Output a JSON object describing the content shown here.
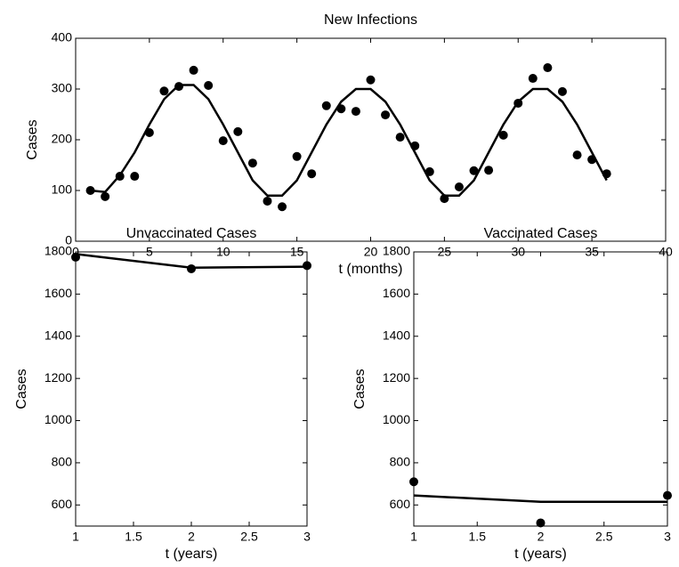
{
  "chart_data": [
    {
      "type": "line",
      "title": "New Infections",
      "xlabel": "t (months)",
      "ylabel": "Cases",
      "xlim": [
        0,
        40
      ],
      "ylim": [
        0,
        400
      ],
      "xticks": [
        0,
        5,
        10,
        15,
        20,
        25,
        30,
        35,
        40
      ],
      "yticks": [
        0,
        100,
        200,
        300,
        400
      ],
      "x": [
        1,
        2,
        3,
        4,
        5,
        6,
        7,
        8,
        9,
        10,
        11,
        12,
        13,
        14,
        15,
        16,
        17,
        18,
        19,
        20,
        21,
        22,
        23,
        24,
        25,
        26,
        27,
        28,
        29,
        30,
        31,
        32,
        33,
        34,
        35,
        36
      ],
      "series": [
        {
          "style": "markers",
          "color": "#000000",
          "values": [
            100,
            88,
            128,
            128,
            214,
            296,
            305,
            337,
            307,
            198,
            216,
            154,
            79,
            68,
            167,
            133,
            267,
            261,
            256,
            318,
            249,
            205,
            188,
            137,
            84,
            107,
            139,
            140,
            209,
            272,
            321,
            342,
            295,
            170,
            161,
            133
          ]
        },
        {
          "style": "line",
          "color": "#000000",
          "values": [
            100,
            97,
            130,
            175,
            230,
            280,
            308,
            308,
            280,
            230,
            175,
            120,
            90,
            90,
            120,
            175,
            230,
            275,
            300,
            300,
            275,
            230,
            175,
            120,
            90,
            90,
            120,
            175,
            230,
            275,
            300,
            300,
            275,
            230,
            175,
            120
          ]
        }
      ]
    },
    {
      "type": "line",
      "title": "Unvaccinated Cases",
      "xlabel": "t (years)",
      "ylabel": "Cases",
      "xlim": [
        1,
        3
      ],
      "ylim": [
        500,
        1800
      ],
      "xticks": [
        1,
        1.5,
        2,
        2.5,
        3
      ],
      "yticks": [
        600,
        800,
        1000,
        1200,
        1400,
        1600,
        1800
      ],
      "x": [
        1,
        2,
        3
      ],
      "series": [
        {
          "style": "markers",
          "color": "#000000",
          "values": [
            1775,
            1720,
            1735
          ]
        },
        {
          "style": "line",
          "color": "#000000",
          "values": [
            1790,
            1725,
            1730
          ]
        }
      ]
    },
    {
      "type": "line",
      "title": "Vaccinated Cases",
      "xlabel": "t (years)",
      "ylabel": "Cases",
      "xlim": [
        1,
        3
      ],
      "ylim": [
        500,
        1800
      ],
      "xticks": [
        1,
        1.5,
        2,
        2.5,
        3
      ],
      "yticks": [
        600,
        800,
        1000,
        1200,
        1400,
        1600,
        1800
      ],
      "x": [
        1,
        2,
        3
      ],
      "series": [
        {
          "style": "markers",
          "color": "#000000",
          "values": [
            710,
            515,
            645
          ]
        },
        {
          "style": "line",
          "color": "#000000",
          "values": [
            645,
            615,
            615
          ]
        }
      ]
    }
  ]
}
